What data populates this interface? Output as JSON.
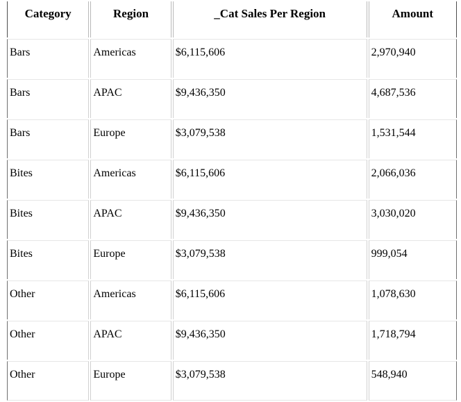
{
  "table": {
    "headers": [
      "Category",
      "Region",
      "_Cat Sales Per Region",
      "Amount"
    ],
    "rows": [
      [
        "Bars",
        "Americas",
        "$6,115,606",
        "2,970,940"
      ],
      [
        "Bars",
        "APAC",
        "$9,436,350",
        "4,687,536"
      ],
      [
        "Bars",
        "Europe",
        "$3,079,538",
        "1,531,544"
      ],
      [
        "Bites",
        "Americas",
        "$6,115,606",
        "2,066,036"
      ],
      [
        "Bites",
        "APAC",
        "$9,436,350",
        "3,030,020"
      ],
      [
        "Bites",
        "Europe",
        "$3,079,538",
        "999,054"
      ],
      [
        "Other",
        "Americas",
        "$6,115,606",
        "1,078,630"
      ],
      [
        "Other",
        "APAC",
        "$9,436,350",
        "1,718,794"
      ],
      [
        "Other",
        "Europe",
        "$3,079,538",
        "548,940"
      ]
    ]
  }
}
